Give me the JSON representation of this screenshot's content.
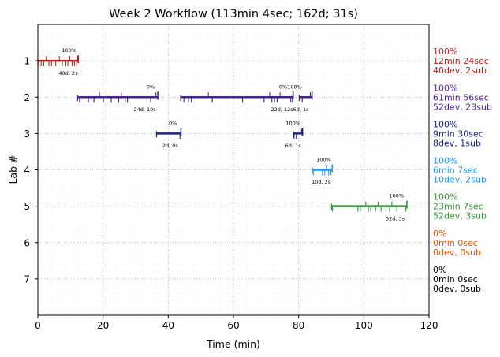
{
  "chart_data": {
    "type": "timeline",
    "title": "Week 2 Workflow (113min 4sec; 162d; 31s)",
    "xlabel": "Time (min)",
    "ylabel": "Lab #",
    "xlim": [
      0,
      120
    ],
    "ylim": [
      8,
      0
    ],
    "xticks": [
      0,
      20,
      40,
      60,
      80,
      100,
      120
    ],
    "yticks": [
      1,
      2,
      3,
      4,
      5,
      6,
      7
    ],
    "grid": true,
    "labs": [
      {
        "lab": 1,
        "color": "#b22222",
        "segments": [
          [
            0,
            12.4
          ]
        ],
        "ticks": [
          0.3,
          1.0,
          1.8,
          2.6,
          3.4,
          4.2,
          5.5,
          6.6,
          7.5,
          8.6,
          9.2,
          9.8,
          10.5,
          11.2,
          11.8,
          12.2
        ],
        "annotations": [
          {
            "x": 9.6,
            "y": 0.72,
            "text": "100%"
          },
          {
            "x": 9.3,
            "y": 1.34,
            "text": "40d, 2s"
          }
        ],
        "side": [
          "100%",
          "12min 24sec",
          "40dev, 2sub"
        ]
      },
      {
        "lab": 2,
        "color": "#4b1f8c",
        "segments": [
          [
            12.2,
            36.8
          ],
          [
            43.8,
            78.3
          ],
          [
            80.2,
            84.1
          ]
        ],
        "ticks": [
          12.8,
          15.5,
          17.2,
          18.9,
          20.1,
          22.5,
          24.8,
          25.6,
          26.8,
          27.5,
          34.6,
          36.2,
          44.8,
          46.2,
          47.1,
          52.3,
          53.5,
          62.8,
          69.4,
          71.1,
          71.8,
          72.6,
          73.4,
          74.3,
          77.6,
          78.1,
          81.1,
          83.6
        ],
        "annotations": [
          {
            "x": 34.6,
            "y": 1.72,
            "text": "0%"
          },
          {
            "x": 32.8,
            "y": 2.34,
            "text": "24d, 10s"
          },
          {
            "x": 77.5,
            "y": 1.72,
            "text": "0%100%"
          },
          {
            "x": 77.3,
            "y": 2.34,
            "text": "22d, 12s6d, 1s"
          }
        ],
        "side": [
          "100%",
          "61min 56sec",
          "52dev, 23sub"
        ]
      },
      {
        "lab": 3,
        "color": "#1a237e",
        "segments": [
          [
            36.4,
            43.9
          ],
          [
            78.4,
            81.2
          ]
        ],
        "ticks": [
          43.6,
          78.6,
          79.3,
          80.9
        ],
        "annotations": [
          {
            "x": 41.4,
            "y": 2.72,
            "text": "0%"
          },
          {
            "x": 40.6,
            "y": 3.34,
            "text": "2d, 0s"
          },
          {
            "x": 78.3,
            "y": 2.72,
            "text": "100%"
          },
          {
            "x": 78.3,
            "y": 3.34,
            "text": "6d, 1s"
          }
        ],
        "side": [
          "100%",
          "9min 30sec",
          "8dev, 1sub"
        ]
      },
      {
        "lab": 4,
        "color": "#2196f3",
        "segments": [
          [
            84.2,
            90.3
          ]
        ],
        "ticks": [
          84.5,
          87.3,
          88.0,
          88.6,
          89.2,
          89.9
        ],
        "annotations": [
          {
            "x": 87.7,
            "y": 3.72,
            "text": "100%"
          },
          {
            "x": 86.9,
            "y": 4.34,
            "text": "10d, 2s"
          }
        ],
        "side": [
          "100%",
          "6min 7sec",
          "10dev, 2sub"
        ]
      },
      {
        "lab": 5,
        "color": "#388e3c",
        "segments": [
          [
            90.1,
            113.2
          ]
        ],
        "ticks": [
          90.4,
          98.2,
          98.9,
          100.6,
          101.4,
          102.1,
          103.6,
          104.4,
          105.3,
          106.8,
          107.9,
          108.6,
          110.1,
          112.9
        ],
        "annotations": [
          {
            "x": 110.0,
            "y": 4.72,
            "text": "100%"
          },
          {
            "x": 109.6,
            "y": 5.34,
            "text": "52d, 3s"
          }
        ],
        "side": [
          "100%",
          "23min 7sec",
          "52dev, 3sub"
        ]
      },
      {
        "lab": 6,
        "color": "#e65100",
        "segments": [],
        "ticks": [],
        "annotations": [],
        "side": [
          "0%",
          "0min 0sec",
          "0dev, 0sub"
        ]
      },
      {
        "lab": 7,
        "color": "#000000",
        "segments": [],
        "ticks": [],
        "annotations": [],
        "side": [
          "0%",
          "0min 0sec",
          "0dev, 0sub"
        ]
      }
    ]
  }
}
